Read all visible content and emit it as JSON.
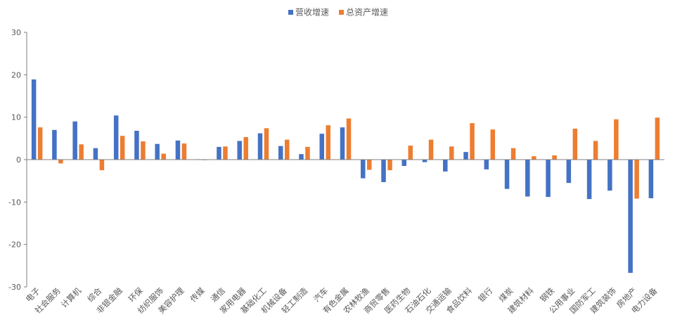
{
  "chart_data": {
    "type": "bar",
    "title": "",
    "xlabel": "",
    "ylabel": "",
    "ylim": [
      -30,
      30
    ],
    "yticks": [
      30,
      20,
      10,
      0,
      -10,
      -20,
      -30
    ],
    "grid": false,
    "legend_position": "top-center",
    "categories": [
      "电子",
      "社会服务",
      "计算机",
      "综合",
      "非银金融",
      "环保",
      "纺织服饰",
      "美容护理",
      "传媒",
      "通信",
      "家用电器",
      "基础化工",
      "机械设备",
      "轻工制造",
      "汽车",
      "有色金属",
      "农林牧渔",
      "商贸零售",
      "医药生物",
      "石油石化",
      "交通运输",
      "食品饮料",
      "银行",
      "煤炭",
      "建筑材料",
      "钢铁",
      "公用事业",
      "国防军工",
      "建筑装饰",
      "房地产",
      "电力设备"
    ],
    "series": [
      {
        "name": "营收增速",
        "color": "#4472C4",
        "values": [
          18.9,
          7.0,
          9.0,
          2.7,
          10.4,
          6.8,
          3.7,
          4.5,
          0.1,
          3.0,
          4.4,
          6.2,
          3.2,
          1.3,
          6.1,
          7.6,
          -4.4,
          -5.3,
          -1.5,
          -0.6,
          -2.8,
          1.8,
          -2.3,
          -6.9,
          -8.7,
          -8.8,
          -5.5,
          -9.3,
          -7.3,
          -26.7,
          -9.1
        ]
      },
      {
        "name": "总资产增速",
        "color": "#ED7D31",
        "values": [
          7.6,
          -0.9,
          3.6,
          -2.5,
          5.6,
          4.3,
          1.4,
          3.8,
          0.0,
          3.1,
          5.3,
          7.4,
          4.7,
          3.0,
          8.1,
          9.7,
          -2.4,
          -2.5,
          3.3,
          4.7,
          3.1,
          8.6,
          7.1,
          2.7,
          0.8,
          1.0,
          7.3,
          4.4,
          9.5,
          -9.2,
          9.9
        ]
      }
    ]
  }
}
